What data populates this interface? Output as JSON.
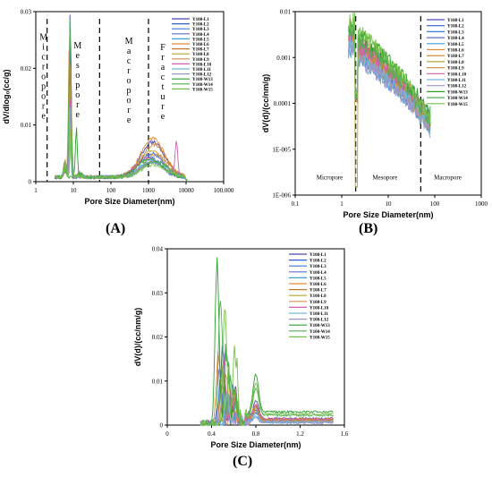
{
  "series_names": [
    "Y108-L1",
    "Y108-L2",
    "Y108-L3",
    "Y108-L4",
    "Y108-L5",
    "Y108-L6",
    "Y108-L7",
    "Y108-L8",
    "Y108-L9",
    "Y108-L10",
    "Y108-L11",
    "Y108-L12",
    "Y108-W13",
    "Y108-W14",
    "Y108-W15"
  ],
  "series_colors": [
    "#4a4ab0",
    "#2f5fd0",
    "#3a7ad8",
    "#5b6fc8",
    "#3aa0d8",
    "#e28a3a",
    "#c47a2a",
    "#b8a030",
    "#d09050",
    "#d060b0",
    "#78b8e0",
    "#9898c8",
    "#2ea02e",
    "#52b052",
    "#78c050"
  ],
  "chart_data": [
    {
      "id": "A",
      "type": "line",
      "caption": "(A)",
      "xlabel": "Pore Size Diameter(nm)",
      "ylabel": "dV/dlog₀(cc/g)",
      "xscale": "log",
      "xlim": [
        1,
        100000
      ],
      "ylim": [
        0,
        0.03
      ],
      "xticks": [
        {
          "v": 1,
          "label": "1"
        },
        {
          "v": 10,
          "label": "10"
        },
        {
          "v": 100,
          "label": "100"
        },
        {
          "v": 1000,
          "label": "1000"
        },
        {
          "v": 10000,
          "label": "10000"
        },
        {
          "v": 100000,
          "label": "100.000"
        }
      ],
      "yticks": [
        {
          "v": 0,
          "label": "0"
        },
        {
          "v": 0.01,
          "label": "0.01"
        },
        {
          "v": 0.02,
          "label": "0.02"
        },
        {
          "v": 0.03,
          "label": "0.03"
        }
      ],
      "dividers": [
        2,
        50,
        1000
      ],
      "regions": [
        {
          "label": "Micropore",
          "x": 1.6,
          "y": 0.025
        },
        {
          "label": "Mesopore",
          "x": 13,
          "y": 0.0235
        },
        {
          "label": "Macropore",
          "x": 300,
          "y": 0.0243
        },
        {
          "label": "Fracture",
          "x": 2400,
          "y": 0.0232
        }
      ],
      "legend_position": "top-right",
      "peaks": [
        {
          "x": 8.2,
          "h": 0.0293
        },
        {
          "x": 8.3,
          "h": 0.0248
        },
        {
          "x": 7.9,
          "h": 0.0218
        },
        {
          "x": 8.5,
          "h": 0.0192
        },
        {
          "x": 8.1,
          "h": 0.0175
        },
        {
          "x": 7.8,
          "h": 0.0235
        },
        {
          "x": 8.4,
          "h": 0.0205
        },
        {
          "x": 8.0,
          "h": 0.0168
        },
        {
          "x": 8.6,
          "h": 0.0152
        },
        {
          "x": 8.2,
          "h": 0.014
        },
        {
          "x": 8.0,
          "h": 0.0128
        },
        {
          "x": 8.3,
          "h": 0.0118
        },
        {
          "x": 12,
          "h": 0.0088
        },
        {
          "x": 8.1,
          "h": 0.0276
        },
        {
          "x": 8.8,
          "h": 0.0105
        }
      ],
      "humps": [
        {
          "c": 1300,
          "h": 0.0062
        },
        {
          "c": 1200,
          "h": 0.0042
        },
        {
          "c": 1000,
          "h": 0.0035
        },
        {
          "c": 1500,
          "h": 0.003
        },
        {
          "c": 1100,
          "h": 0.0027
        },
        {
          "c": 1300,
          "h": 0.0068
        },
        {
          "c": 1400,
          "h": 0.0058
        },
        {
          "c": 1200,
          "h": 0.0047
        },
        {
          "c": 1600,
          "h": 0.004
        },
        {
          "c": 1000,
          "h": 0.0034
        },
        {
          "c": 1300,
          "h": 0.003
        },
        {
          "c": 1200,
          "h": 0.0026
        },
        {
          "c": 1100,
          "h": 0.0033
        },
        {
          "c": 1500,
          "h": 0.0028
        },
        {
          "c": 1400,
          "h": 0.0022
        }
      ],
      "spike": {
        "x": 5500,
        "h": 0.0062,
        "series": 9
      }
    },
    {
      "id": "B",
      "type": "line",
      "caption": "(B)",
      "xlabel": "Pore Size Diameter(nm)",
      "ylabel": "dV(d)/(cc/nm/g)",
      "xscale": "log",
      "yscale": "log",
      "xlim": [
        0.1,
        1000
      ],
      "ylim": [
        1e-06,
        0.01
      ],
      "xticks": [
        {
          "v": 0.1,
          "label": "0.1"
        },
        {
          "v": 1,
          "label": "1"
        },
        {
          "v": 10,
          "label": "10"
        },
        {
          "v": 100,
          "label": "100"
        },
        {
          "v": 1000,
          "label": "1000"
        }
      ],
      "yticks": [
        {
          "v": 1e-06,
          "label": "1E-006"
        },
        {
          "v": 1e-05,
          "label": "1E-005"
        },
        {
          "v": 0.0001,
          "label": "0.0001"
        },
        {
          "v": 0.001,
          "label": "0.001"
        },
        {
          "v": 0.01,
          "label": "0.01"
        }
      ],
      "dividers": [
        2,
        50
      ],
      "regions": [
        {
          "label": "Micropore",
          "x": 0.55,
          "y": 2.2e-06
        },
        {
          "label": "Mesopore",
          "x": 8.5,
          "y": 2.2e-06
        },
        {
          "label": "Macropore",
          "x": 190,
          "y": 2.2e-06
        }
      ],
      "legend_position": "top-right",
      "levels": [
        0.0032,
        0.0022,
        0.0018,
        0.0026,
        0.0015,
        0.004,
        0.003,
        0.0024,
        0.002,
        0.0028,
        0.0017,
        0.0014,
        0.005,
        0.0036,
        0.006
      ],
      "end_levels": [
        4.5e-05,
        3e-05,
        3.5e-05,
        5e-05,
        2.8e-05,
        5.5e-05,
        4e-05,
        3.8e-05,
        3.2e-05,
        4.8e-05,
        3e-05,
        2.6e-05,
        6e-05,
        4.2e-05,
        5e-05
      ]
    },
    {
      "id": "C",
      "type": "line",
      "caption": "(C)",
      "xlabel": "Pore Size Diameter(nm)",
      "ylabel": "dV(d)/(cc/nm/g)",
      "xlim": [
        0,
        1.6
      ],
      "ylim": [
        0,
        0.04
      ],
      "xticks": [
        {
          "v": 0,
          "label": "0"
        },
        {
          "v": 0.4,
          "label": "0.4"
        },
        {
          "v": 0.8,
          "label": "0.8"
        },
        {
          "v": 1.2,
          "label": "1.2"
        },
        {
          "v": 1.6,
          "label": "1.6"
        }
      ],
      "yticks": [
        {
          "v": 0,
          "label": "0"
        },
        {
          "v": 0.01,
          "label": "0.01"
        },
        {
          "v": 0.02,
          "label": "0.02"
        },
        {
          "v": 0.03,
          "label": "0.03"
        },
        {
          "v": 0.04,
          "label": "0.04"
        }
      ],
      "legend_position": "top-right",
      "peaks": [
        {
          "x": 0.5,
          "h": 0.0175
        },
        {
          "x": 0.48,
          "h": 0.01
        },
        {
          "x": 0.52,
          "h": 0.008
        },
        {
          "x": 0.47,
          "h": 0.012
        },
        {
          "x": 0.55,
          "h": 0.006
        },
        {
          "x": 0.46,
          "h": 0.016
        },
        {
          "x": 0.5,
          "h": 0.013
        },
        {
          "x": 0.53,
          "h": 0.011
        },
        {
          "x": 0.49,
          "h": 0.0095
        },
        {
          "x": 0.51,
          "h": 0.014
        },
        {
          "x": 0.54,
          "h": 0.007
        },
        {
          "x": 0.56,
          "h": 0.005
        },
        {
          "x": 0.45,
          "h": 0.037
        },
        {
          "x": 0.48,
          "h": 0.029
        },
        {
          "x": 0.52,
          "h": 0.026
        }
      ],
      "bumps": [
        0.004,
        0.0025,
        0.002,
        0.003,
        0.0015,
        0.0035,
        0.003,
        0.0028,
        0.0022,
        0.0032,
        0.0018,
        0.0012,
        0.0085,
        0.006,
        0.007
      ],
      "tails": [
        0.0015,
        0.001,
        0.0008,
        0.0012,
        0.0006,
        0.0014,
        0.0012,
        0.0011,
        0.0009,
        0.0013,
        0.0007,
        0.0005,
        0.003,
        0.0022,
        0.0025
      ]
    }
  ]
}
